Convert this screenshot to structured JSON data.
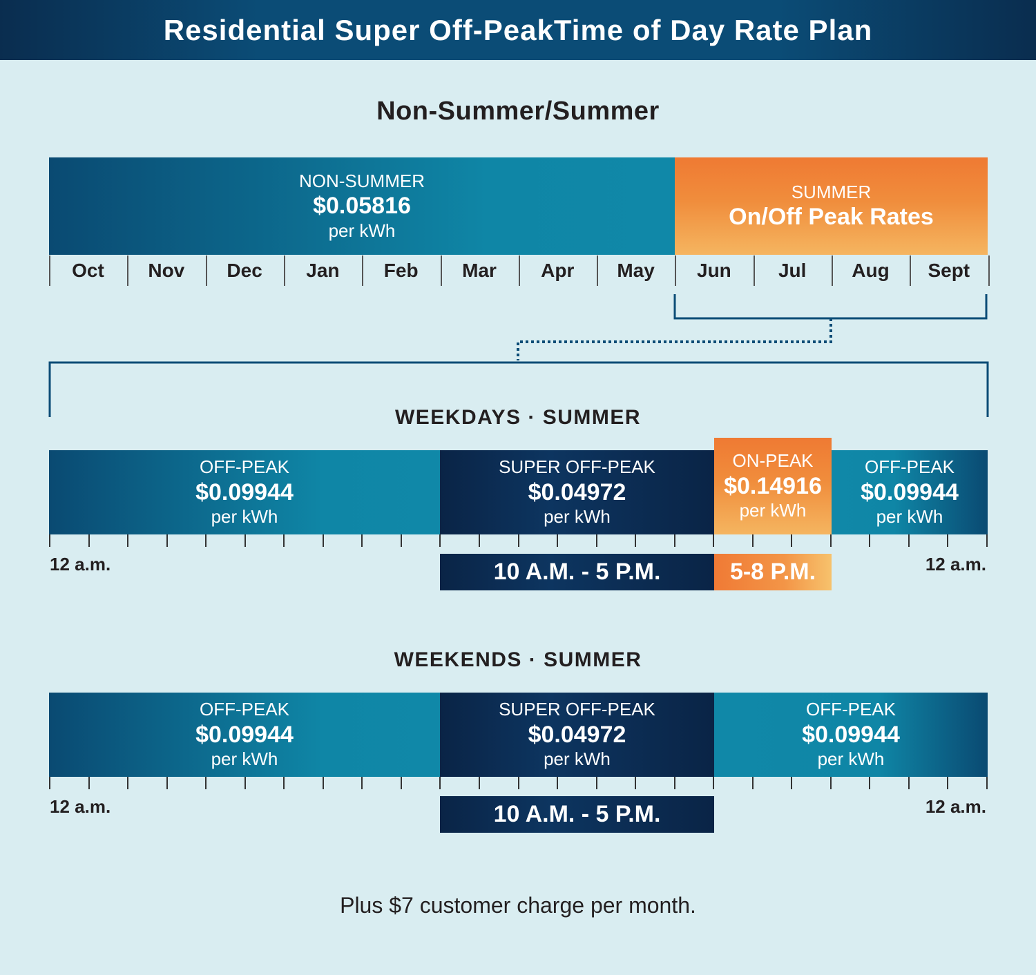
{
  "header": {
    "title": "Residential Super Off-PeakTime of Day Rate Plan"
  },
  "season": {
    "title": "Non-Summer/Summer",
    "non_summer": {
      "label": "NON-SUMMER",
      "rate": "$0.05816",
      "unit": "per kWh"
    },
    "summer": {
      "label": "SUMMER",
      "rate": "On/Off Peak Rates"
    },
    "months": [
      "Oct",
      "Nov",
      "Dec",
      "Jan",
      "Feb",
      "Mar",
      "Apr",
      "May",
      "Jun",
      "Jul",
      "Aug",
      "Sept"
    ]
  },
  "weekdays": {
    "title": "WEEKDAYS · SUMMER",
    "segments": [
      {
        "label": "OFF-PEAK",
        "rate": "$0.09944",
        "unit": "per kWh"
      },
      {
        "label": "SUPER OFF-PEAK",
        "rate": "$0.04972",
        "unit": "per kWh"
      },
      {
        "label": "ON-PEAK",
        "rate": "$0.14916",
        "unit": "per kWh"
      },
      {
        "label": "OFF-PEAK",
        "rate": "$0.09944",
        "unit": "per kWh"
      }
    ],
    "start_label": "12 a.m.",
    "end_label": "12 a.m.",
    "super_offpeak_time": "10 A.M. - 5 P.M.",
    "onpeak_time": "5-8 P.M."
  },
  "weekends": {
    "title": "WEEKENDS · SUMMER",
    "segments": [
      {
        "label": "OFF-PEAK",
        "rate": "$0.09944",
        "unit": "per kWh"
      },
      {
        "label": "SUPER OFF-PEAK",
        "rate": "$0.04972",
        "unit": "per kWh"
      },
      {
        "label": "OFF-PEAK",
        "rate": "$0.09944",
        "unit": "per kWh"
      }
    ],
    "start_label": "12 a.m.",
    "end_label": "12 a.m.",
    "super_offpeak_time": "10 A.M. - 5 P.M."
  },
  "footer": {
    "note": "Plus $7 customer charge per month."
  },
  "colors": {
    "background": "#d9edf1",
    "teal": "#0f86a6",
    "navy": "#0a2446",
    "orange": "#ef7a33",
    "connector": "#0b4c76"
  }
}
